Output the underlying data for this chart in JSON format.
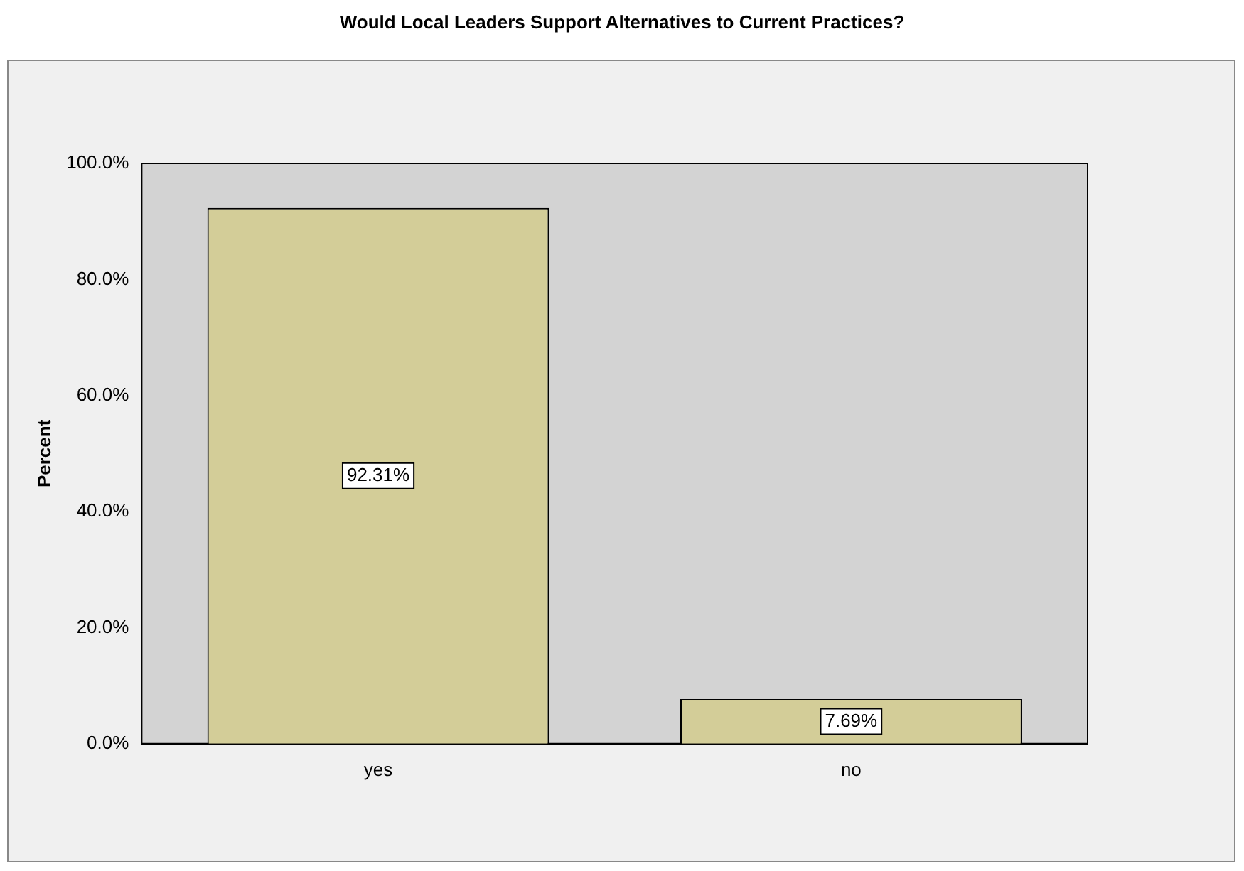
{
  "chart_data": {
    "type": "bar",
    "title": "Would Local Leaders Support Alternatives to Current Practices?",
    "ylabel": "Percent",
    "categories": [
      "yes",
      "no"
    ],
    "values": [
      92.31,
      7.69
    ],
    "value_labels": [
      "92.31%",
      "7.69%"
    ],
    "color": "#d3cd98",
    "ylim": [
      0,
      100
    ],
    "yticks": [
      {
        "value": 0,
        "label": "0.0%"
      },
      {
        "value": 20,
        "label": "20.0%"
      },
      {
        "value": 40,
        "label": "40.0%"
      },
      {
        "value": 60,
        "label": "60.0%"
      },
      {
        "value": 80,
        "label": "80.0%"
      },
      {
        "value": 100,
        "label": "100.0%"
      }
    ],
    "grid": false,
    "legend": false
  }
}
